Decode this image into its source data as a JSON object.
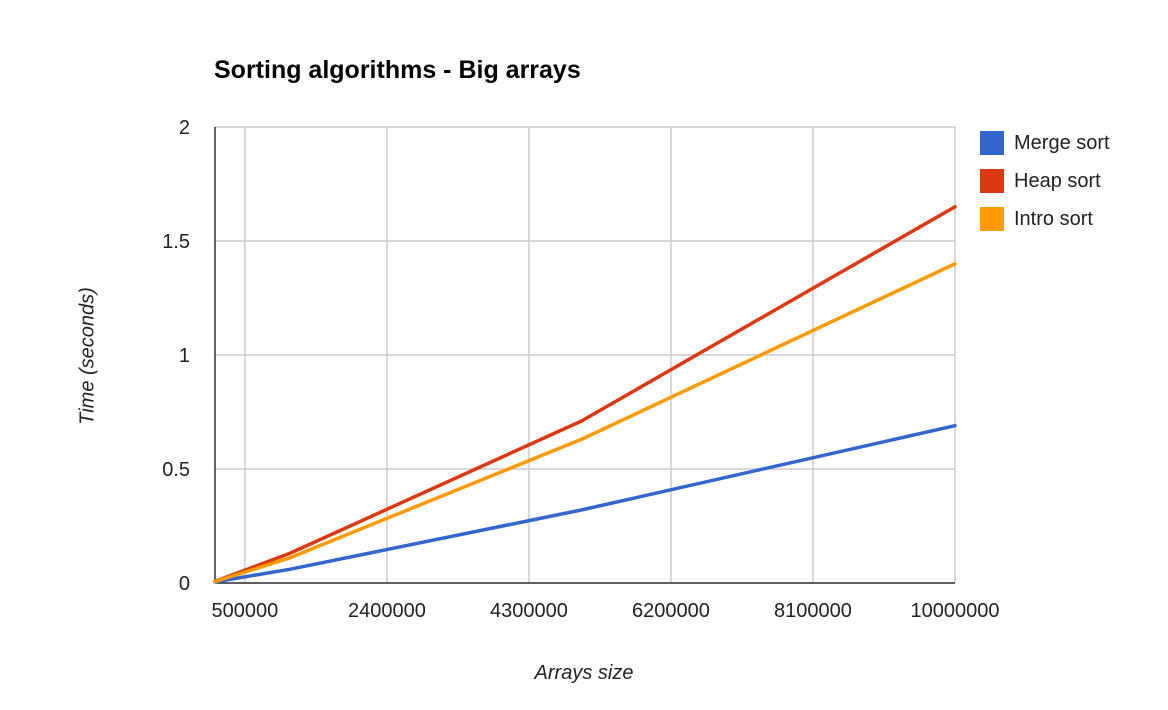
{
  "chart_data": {
    "type": "line",
    "title": "Sorting algorithms - Big arrays",
    "xlabel": "Arrays size",
    "ylabel": "Time (seconds)",
    "x": [
      100000,
      1100000,
      5000000,
      10000000
    ],
    "xlim": [
      100000,
      10000000
    ],
    "ylim": [
      0,
      2
    ],
    "x_ticks": [
      500000,
      2400000,
      4300000,
      6200000,
      8100000,
      10000000
    ],
    "x_tick_labels": [
      "500000",
      "2400000",
      "4300000",
      "6200000",
      "8100000",
      "10000000"
    ],
    "y_ticks": [
      0,
      0.5,
      1,
      1.5,
      2
    ],
    "y_tick_labels": [
      "0",
      "0.5",
      "1",
      "1.5",
      "2"
    ],
    "grid": true,
    "legend_position": "right",
    "series": [
      {
        "name": "Merge sort",
        "color": "#3366cc",
        "values": [
          0.005,
          0.06,
          0.32,
          0.69
        ]
      },
      {
        "name": "Heap sort",
        "color": "#dc3912",
        "values": [
          0.007,
          0.13,
          0.71,
          1.65
        ]
      },
      {
        "name": "Intro sort",
        "color": "#ff9900",
        "values": [
          0.006,
          0.11,
          0.63,
          1.4
        ]
      }
    ]
  }
}
